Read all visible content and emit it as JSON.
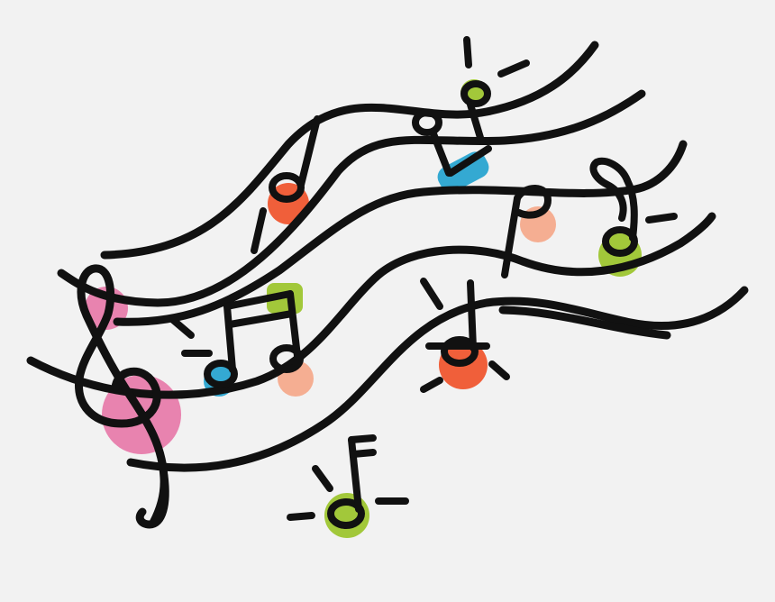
{
  "illustration": {
    "subject": "music-notes-clipart",
    "background_color": "#f2f2f2",
    "ink_color": "#111111",
    "colors": {
      "pink": "#e77aa9",
      "orange_red": "#f0532a",
      "salmon": "#f5a88a",
      "teal": "#24a3cf",
      "lime": "#9bc42a"
    },
    "elements": [
      {
        "name": "treble-clef",
        "accent": "pink"
      },
      {
        "name": "eighth-note",
        "accent": "orange_red"
      },
      {
        "name": "beamed-eighth-notes",
        "accent": "lime"
      },
      {
        "name": "eighth-note",
        "accent": "teal"
      },
      {
        "name": "eighth-note",
        "accent": "salmon"
      },
      {
        "name": "eighth-note",
        "accent": "lime"
      },
      {
        "name": "quarter-note",
        "accent": "orange_red"
      },
      {
        "name": "eighth-note",
        "accent": "lime"
      }
    ]
  }
}
